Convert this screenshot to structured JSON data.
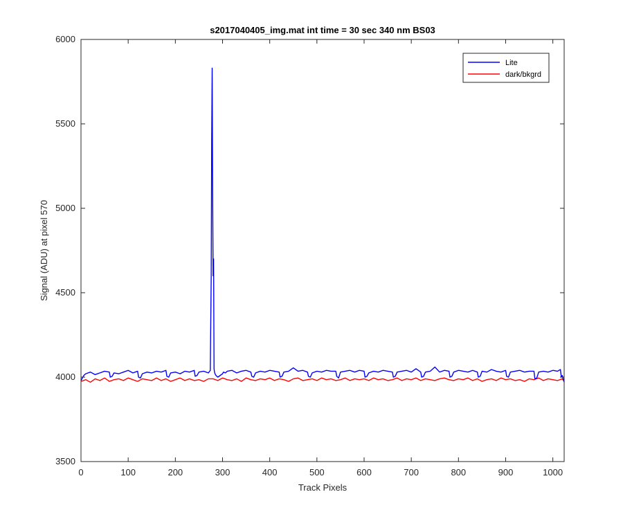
{
  "chart_data": {
    "type": "line",
    "title": "s2017040405_img.mat int time = 30 sec  340 nm BS03",
    "xlabel": "Track Pixels",
    "ylabel": "Signal (ADU) at pixel 570",
    "xlim": [
      0,
      1024
    ],
    "ylim": [
      3500,
      6000
    ],
    "xticks": [
      0,
      100,
      200,
      300,
      400,
      500,
      600,
      700,
      800,
      900,
      1000
    ],
    "yticks": [
      3500,
      4000,
      4500,
      5000,
      5500,
      6000
    ],
    "xtick_labels": [
      "0",
      "100",
      "200",
      "300",
      "400",
      "500",
      "600",
      "700",
      "800",
      "900",
      "1000"
    ],
    "ytick_labels": [
      "3500",
      "4000",
      "4500",
      "5000",
      "5500",
      "6000"
    ],
    "grid": false,
    "legend_position": "top-right",
    "series": [
      {
        "name": "Lite",
        "color": "#0000ff",
        "x": [
          0,
          3,
          6,
          10,
          20,
          30,
          40,
          50,
          60,
          62,
          66,
          70,
          80,
          90,
          100,
          110,
          120,
          122,
          126,
          130,
          140,
          150,
          160,
          170,
          180,
          182,
          186,
          190,
          200,
          210,
          220,
          230,
          240,
          242,
          246,
          250,
          260,
          270,
          274,
          276,
          277,
          278,
          279,
          280,
          281,
          282,
          283,
          284,
          286,
          290,
          300,
          302,
          306,
          310,
          320,
          330,
          340,
          350,
          360,
          362,
          366,
          370,
          380,
          390,
          400,
          410,
          420,
          422,
          426,
          430,
          440,
          450,
          460,
          470,
          480,
          482,
          486,
          490,
          500,
          510,
          520,
          530,
          540,
          542,
          546,
          550,
          560,
          570,
          580,
          590,
          600,
          602,
          606,
          610,
          620,
          630,
          640,
          650,
          660,
          662,
          666,
          670,
          680,
          690,
          700,
          710,
          720,
          722,
          726,
          730,
          740,
          750,
          760,
          770,
          780,
          782,
          786,
          790,
          800,
          810,
          820,
          830,
          840,
          842,
          846,
          850,
          860,
          870,
          880,
          890,
          900,
          902,
          906,
          910,
          920,
          930,
          940,
          950,
          960,
          962,
          966,
          970,
          980,
          990,
          1000,
          1010,
          1016,
          1018,
          1020,
          1024
        ],
        "y": [
          3980,
          3995,
          4010,
          4020,
          4030,
          4015,
          4025,
          4035,
          4030,
          4000,
          4005,
          4025,
          4020,
          4030,
          4040,
          4025,
          4035,
          4000,
          3995,
          4020,
          4030,
          4025,
          4035,
          4030,
          4040,
          4005,
          4000,
          4025,
          4030,
          4020,
          4035,
          4030,
          4040,
          4005,
          4010,
          4030,
          4035,
          4025,
          4040,
          4600,
          5400,
          5830,
          5100,
          4600,
          4700,
          4050,
          4030,
          4020,
          4010,
          4000,
          4020,
          4030,
          4025,
          4035,
          4040,
          4025,
          4035,
          4040,
          4030,
          4005,
          4000,
          4025,
          4035,
          4030,
          4040,
          4035,
          4030,
          4000,
          4005,
          4030,
          4035,
          4055,
          4035,
          4040,
          4030,
          4005,
          4000,
          4025,
          4035,
          4030,
          4040,
          4035,
          4035,
          4005,
          3995,
          4030,
          4035,
          4040,
          4030,
          4040,
          4035,
          4000,
          4005,
          4025,
          4035,
          4030,
          4040,
          4035,
          4030,
          4000,
          4005,
          4030,
          4035,
          4040,
          4030,
          4050,
          4030,
          4000,
          4005,
          4030,
          4035,
          4060,
          4030,
          4040,
          4035,
          4000,
          4005,
          4030,
          4040,
          4035,
          4030,
          4040,
          4030,
          4000,
          4005,
          4035,
          4030,
          4045,
          4035,
          4030,
          4040,
          4005,
          4000,
          4030,
          4035,
          4040,
          4030,
          4035,
          4035,
          3990,
          3995,
          4030,
          4035,
          4030,
          4040,
          4035,
          4045,
          4000,
          4010,
          3970
        ]
      },
      {
        "name": "dark/bkgrd",
        "color": "#ff0000",
        "x": [
          0,
          10,
          20,
          30,
          40,
          50,
          60,
          70,
          80,
          90,
          100,
          110,
          120,
          130,
          140,
          150,
          160,
          170,
          180,
          190,
          200,
          210,
          220,
          230,
          240,
          250,
          260,
          270,
          280,
          290,
          300,
          310,
          320,
          330,
          340,
          350,
          360,
          370,
          380,
          390,
          400,
          410,
          420,
          430,
          440,
          450,
          460,
          470,
          480,
          490,
          500,
          510,
          520,
          530,
          540,
          550,
          560,
          570,
          580,
          590,
          600,
          610,
          620,
          630,
          640,
          650,
          660,
          670,
          680,
          690,
          700,
          710,
          720,
          730,
          740,
          750,
          760,
          770,
          780,
          790,
          800,
          810,
          820,
          830,
          840,
          850,
          860,
          870,
          880,
          890,
          900,
          910,
          920,
          930,
          940,
          950,
          960,
          970,
          980,
          990,
          1000,
          1010,
          1020,
          1024
        ],
        "y": [
          3975,
          3985,
          3970,
          3990,
          3980,
          3995,
          3975,
          3985,
          3990,
          3980,
          3995,
          3985,
          3975,
          3990,
          3985,
          3980,
          3995,
          3980,
          3990,
          3975,
          3985,
          3995,
          3980,
          3990,
          3980,
          3985,
          3975,
          3990,
          3990,
          3980,
          3995,
          3985,
          3980,
          3990,
          3975,
          3995,
          3985,
          3980,
          3990,
          3985,
          3995,
          3980,
          3990,
          3985,
          3975,
          3990,
          3995,
          3980,
          3985,
          3990,
          3980,
          3995,
          3985,
          3990,
          3980,
          3985,
          3995,
          3980,
          3990,
          3985,
          3990,
          3980,
          3995,
          3985,
          3990,
          3980,
          3985,
          3995,
          3980,
          3990,
          3985,
          3995,
          3980,
          3990,
          3985,
          3980,
          3990,
          3995,
          3985,
          3980,
          3990,
          3985,
          3995,
          3980,
          3990,
          3975,
          3985,
          3990,
          3980,
          3995,
          3985,
          3990,
          3980,
          3985,
          3975,
          3990,
          3985,
          3995,
          3980,
          3990,
          3985,
          3980,
          3990,
          3975
        ]
      }
    ]
  }
}
